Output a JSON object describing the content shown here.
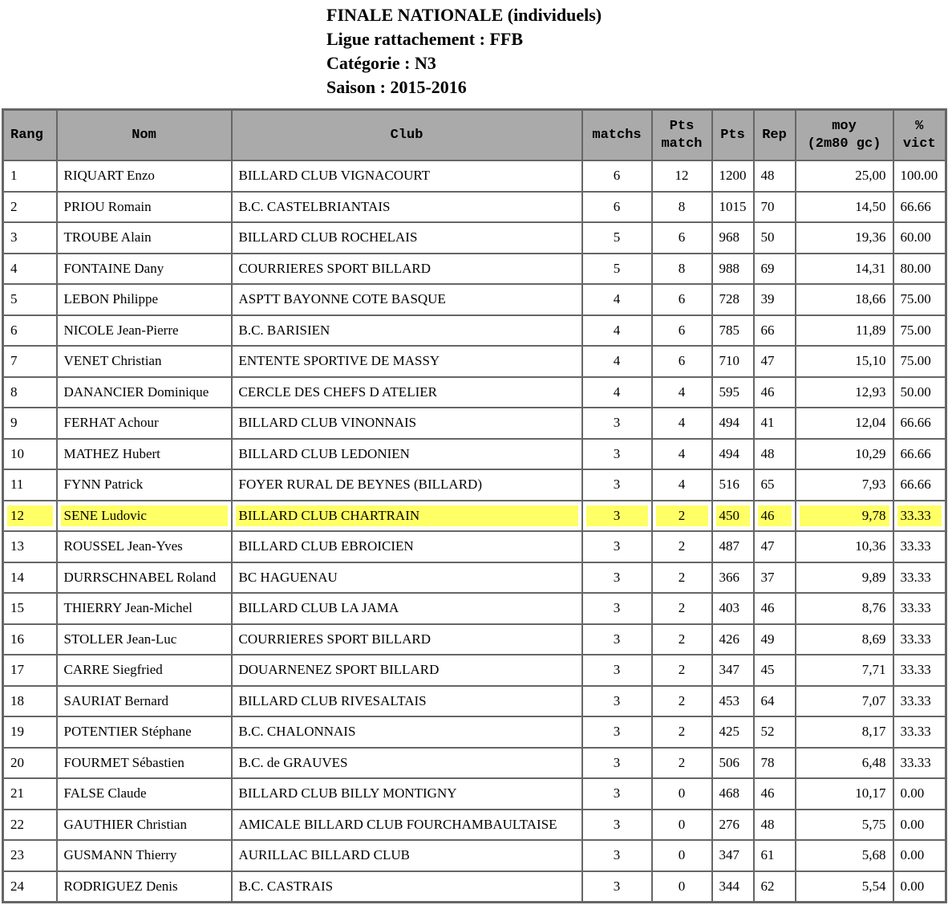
{
  "header": {
    "title": "FINALE NATIONALE (individuels)",
    "ligue": "Ligue rattachement : FFB",
    "categorie": "Catégorie : N3",
    "saison": "Saison : 2015-2016"
  },
  "highlight_color": "#ffff66",
  "table": {
    "columns": [
      "Rang",
      "Nom",
      "Club",
      "matchs",
      "Pts\nmatch",
      "Pts",
      "Rep",
      "moy\n(2m80 gc)",
      "%\nvict"
    ],
    "highlighted_rang": "12",
    "rows": [
      [
        "1",
        "RIQUART Enzo",
        "BILLARD CLUB VIGNACOURT",
        "6",
        "12",
        "1200",
        "48",
        "25,00",
        "100.00"
      ],
      [
        "2",
        "PRIOU Romain",
        "B.C. CASTELBRIANTAIS",
        "6",
        "8",
        "1015",
        "70",
        "14,50",
        "66.66"
      ],
      [
        "3",
        "TROUBE Alain",
        "BILLARD CLUB ROCHELAIS",
        "5",
        "6",
        "968",
        "50",
        "19,36",
        "60.00"
      ],
      [
        "4",
        "FONTAINE Dany",
        "COURRIERES SPORT BILLARD",
        "5",
        "8",
        "988",
        "69",
        "14,31",
        "80.00"
      ],
      [
        "5",
        "LEBON Philippe",
        "ASPTT BAYONNE COTE BASQUE",
        "4",
        "6",
        "728",
        "39",
        "18,66",
        "75.00"
      ],
      [
        "6",
        "NICOLE Jean-Pierre",
        "B.C. BARISIEN",
        "4",
        "6",
        "785",
        "66",
        "11,89",
        "75.00"
      ],
      [
        "7",
        "VENET Christian",
        "ENTENTE SPORTIVE DE MASSY",
        "4",
        "6",
        "710",
        "47",
        "15,10",
        "75.00"
      ],
      [
        "8",
        "DANANCIER Dominique",
        "CERCLE DES CHEFS D ATELIER",
        "4",
        "4",
        "595",
        "46",
        "12,93",
        "50.00"
      ],
      [
        "9",
        "FERHAT Achour",
        "BILLARD CLUB VINONNAIS",
        "3",
        "4",
        "494",
        "41",
        "12,04",
        "66.66"
      ],
      [
        "10",
        "MATHEZ Hubert",
        "BILLARD CLUB LEDONIEN",
        "3",
        "4",
        "494",
        "48",
        "10,29",
        "66.66"
      ],
      [
        "11",
        "FYNN Patrick",
        "FOYER RURAL DE BEYNES (BILLARD)",
        "3",
        "4",
        "516",
        "65",
        "7,93",
        "66.66"
      ],
      [
        "12",
        "SENE Ludovic",
        "BILLARD CLUB CHARTRAIN",
        "3",
        "2",
        "450",
        "46",
        "9,78",
        "33.33"
      ],
      [
        "13",
        "ROUSSEL Jean-Yves",
        "BILLARD CLUB EBROICIEN",
        "3",
        "2",
        "487",
        "47",
        "10,36",
        "33.33"
      ],
      [
        "14",
        "DURRSCHNABEL Roland",
        "BC HAGUENAU",
        "3",
        "2",
        "366",
        "37",
        "9,89",
        "33.33"
      ],
      [
        "15",
        "THIERRY Jean-Michel",
        "BILLARD CLUB LA JAMA",
        "3",
        "2",
        "403",
        "46",
        "8,76",
        "33.33"
      ],
      [
        "16",
        "STOLLER Jean-Luc",
        "COURRIERES SPORT BILLARD",
        "3",
        "2",
        "426",
        "49",
        "8,69",
        "33.33"
      ],
      [
        "17",
        "CARRE Siegfried",
        "DOUARNENEZ SPORT BILLARD",
        "3",
        "2",
        "347",
        "45",
        "7,71",
        "33.33"
      ],
      [
        "18",
        "SAURIAT Bernard",
        "BILLARD CLUB RIVESALTAIS",
        "3",
        "2",
        "453",
        "64",
        "7,07",
        "33.33"
      ],
      [
        "19",
        "POTENTIER Stéphane",
        "B.C. CHALONNAIS",
        "3",
        "2",
        "425",
        "52",
        "8,17",
        "33.33"
      ],
      [
        "20",
        "FOURMET Sébastien",
        "B.C. de GRAUVES",
        "3",
        "2",
        "506",
        "78",
        "6,48",
        "33.33"
      ],
      [
        "21",
        "FALSE Claude",
        "BILLARD CLUB BILLY MONTIGNY",
        "3",
        "0",
        "468",
        "46",
        "10,17",
        "0.00"
      ],
      [
        "22",
        "GAUTHIER Christian",
        "AMICALE BILLARD CLUB FOURCHAMBAULTAISE",
        "3",
        "0",
        "276",
        "48",
        "5,75",
        "0.00"
      ],
      [
        "23",
        "GUSMANN Thierry",
        "AURILLAC BILLARD CLUB",
        "3",
        "0",
        "347",
        "61",
        "5,68",
        "0.00"
      ],
      [
        "24",
        "RODRIGUEZ Denis",
        "B.C. CASTRAIS",
        "3",
        "0",
        "344",
        "62",
        "5,54",
        "0.00"
      ]
    ]
  }
}
